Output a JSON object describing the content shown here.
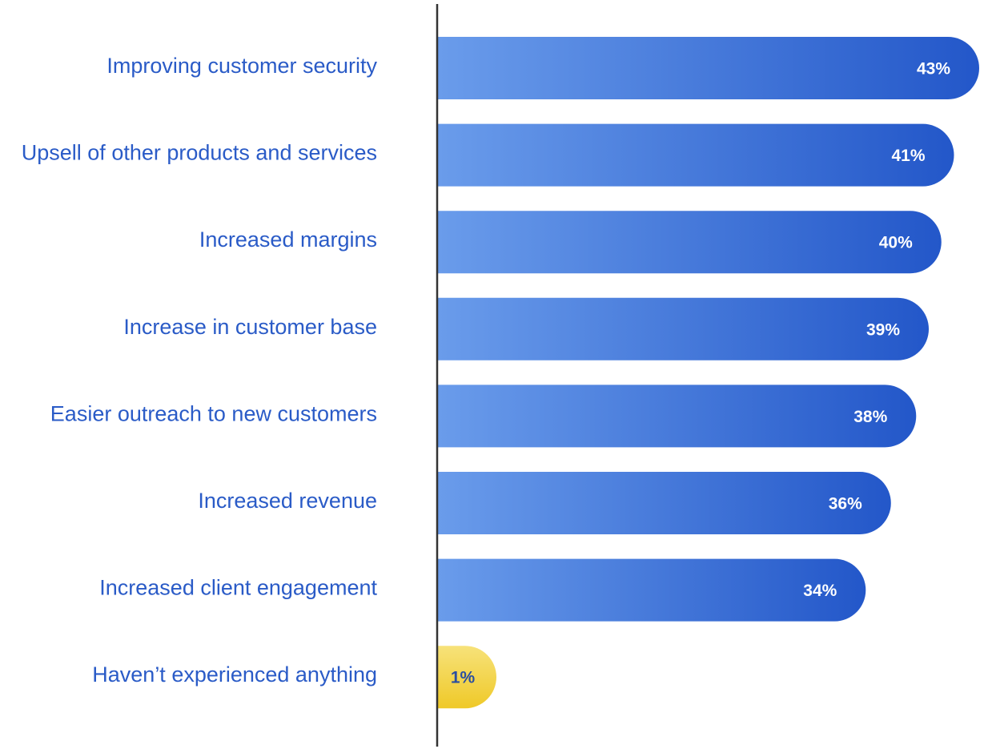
{
  "chart_data": {
    "type": "bar",
    "orientation": "horizontal",
    "categories": [
      "Improving customer security",
      "Upsell of other products and services",
      "Increased margins",
      "Increase in customer base",
      "Easier outreach to new customers",
      "Increased revenue",
      "Increased client engagement",
      "Haven’t experienced anything"
    ],
    "values": [
      43,
      41,
      40,
      39,
      38,
      36,
      34,
      1
    ],
    "value_labels": [
      "43%",
      "41%",
      "40%",
      "39%",
      "38%",
      "36%",
      "34%",
      "1%"
    ],
    "unit": "%",
    "xlim": [
      0,
      43
    ],
    "title": "",
    "xlabel": "",
    "ylabel": "",
    "grid": false,
    "legend": "none"
  },
  "colors": {
    "bar_gradient_start": "#6a9ceb",
    "bar_gradient_end": "#2357c9",
    "highlight_gradient_start": "#f7e27a",
    "highlight_gradient_end": "#efc928",
    "category_text": "#2a5bc7",
    "value_text_on_blue": "#ffffff",
    "value_text_on_yellow": "#2a4ea0",
    "axis_line": "#333333"
  }
}
